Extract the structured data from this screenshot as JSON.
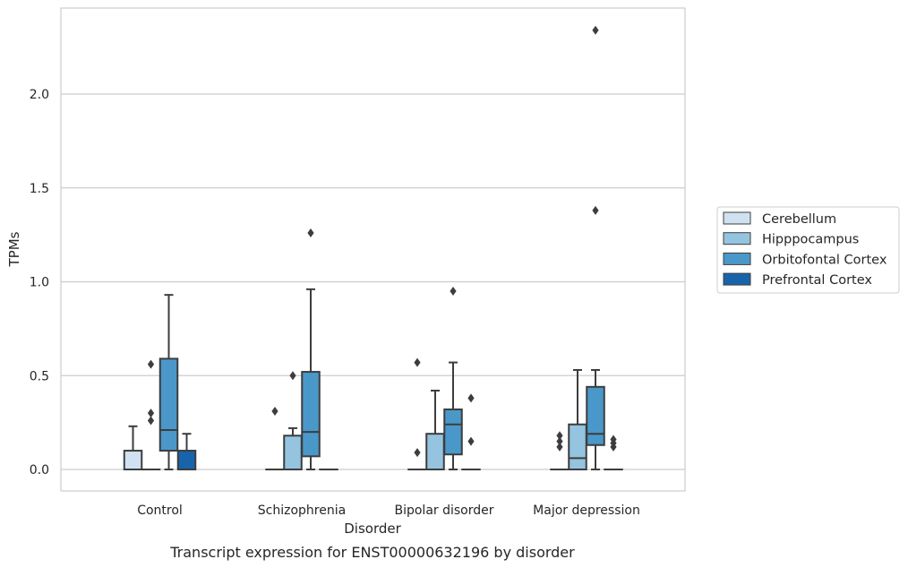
{
  "caption": "Transcript expression for ENST00000632196 by disorder",
  "chart_data": {
    "type": "box",
    "title": "",
    "xlabel": "Disorder",
    "ylabel": "TPMs",
    "ylim": [
      -0.11,
      2.45
    ],
    "yticks": [
      0.0,
      0.5,
      1.0,
      1.5,
      2.0
    ],
    "ytick_labels": [
      "0.0",
      "0.5",
      "1.0",
      "1.5",
      "2.0"
    ],
    "grid": "horizontal",
    "legend_position": "right",
    "categories": [
      "Control",
      "Schizophrenia",
      "Bipolar disorder",
      "Major depression"
    ],
    "series": [
      {
        "name": "Cerebellum",
        "color": "#d0e1f2",
        "boxes": [
          {
            "q1": 0.0,
            "median": 0.0,
            "q3": 0.1,
            "whislo": 0.0,
            "whishi": 0.23,
            "fliers": []
          },
          {
            "q1": 0.0,
            "median": 0.0,
            "q3": 0.0,
            "whislo": 0.0,
            "whishi": 0.0,
            "fliers": [
              0.31
            ]
          },
          {
            "q1": 0.0,
            "median": 0.0,
            "q3": 0.0,
            "whislo": 0.0,
            "whishi": 0.0,
            "fliers": [
              0.09,
              0.57
            ]
          },
          {
            "q1": 0.0,
            "median": 0.0,
            "q3": 0.0,
            "whislo": 0.0,
            "whishi": 0.0,
            "fliers": [
              0.12,
              0.15,
              0.18
            ]
          }
        ]
      },
      {
        "name": "Hipppocampus",
        "color": "#94c4df",
        "boxes": [
          {
            "q1": 0.0,
            "median": 0.0,
            "q3": 0.0,
            "whislo": 0.0,
            "whishi": 0.0,
            "fliers": [
              0.26,
              0.3,
              0.56
            ]
          },
          {
            "q1": 0.0,
            "median": 0.0,
            "q3": 0.18,
            "whislo": 0.0,
            "whishi": 0.22,
            "fliers": [
              0.5
            ]
          },
          {
            "q1": 0.0,
            "median": 0.0,
            "q3": 0.19,
            "whislo": 0.0,
            "whishi": 0.42,
            "fliers": []
          },
          {
            "q1": 0.0,
            "median": 0.06,
            "q3": 0.24,
            "whislo": 0.0,
            "whishi": 0.53,
            "fliers": []
          }
        ]
      },
      {
        "name": "Orbitofontal Cortex",
        "color": "#4a98c9",
        "boxes": [
          {
            "q1": 0.1,
            "median": 0.21,
            "q3": 0.59,
            "whislo": 0.0,
            "whishi": 0.93,
            "fliers": []
          },
          {
            "q1": 0.07,
            "median": 0.2,
            "q3": 0.52,
            "whislo": 0.0,
            "whishi": 0.96,
            "fliers": [
              1.26
            ]
          },
          {
            "q1": 0.08,
            "median": 0.24,
            "q3": 0.32,
            "whislo": 0.0,
            "whishi": 0.57,
            "fliers": [
              0.95
            ]
          },
          {
            "q1": 0.13,
            "median": 0.19,
            "q3": 0.44,
            "whislo": 0.0,
            "whishi": 0.53,
            "fliers": [
              1.38,
              2.34
            ]
          }
        ]
      },
      {
        "name": "Prefrontal Cortex",
        "color": "#1764ab",
        "boxes": [
          {
            "q1": 0.0,
            "median": 0.0,
            "q3": 0.1,
            "whislo": 0.0,
            "whishi": 0.19,
            "fliers": []
          },
          {
            "q1": 0.0,
            "median": 0.0,
            "q3": 0.0,
            "whislo": 0.0,
            "whishi": 0.0,
            "fliers": []
          },
          {
            "q1": 0.0,
            "median": 0.0,
            "q3": 0.0,
            "whislo": 0.0,
            "whishi": 0.0,
            "fliers": [
              0.15,
              0.38
            ]
          },
          {
            "q1": 0.0,
            "median": 0.0,
            "q3": 0.0,
            "whislo": 0.0,
            "whishi": 0.0,
            "fliers": [
              0.12,
              0.14,
              0.16
            ]
          }
        ]
      }
    ],
    "colors": {
      "grid": "#cccccc",
      "frame": "#cccccc",
      "box_edge": "#3d3d3d",
      "text": "#262626"
    }
  }
}
